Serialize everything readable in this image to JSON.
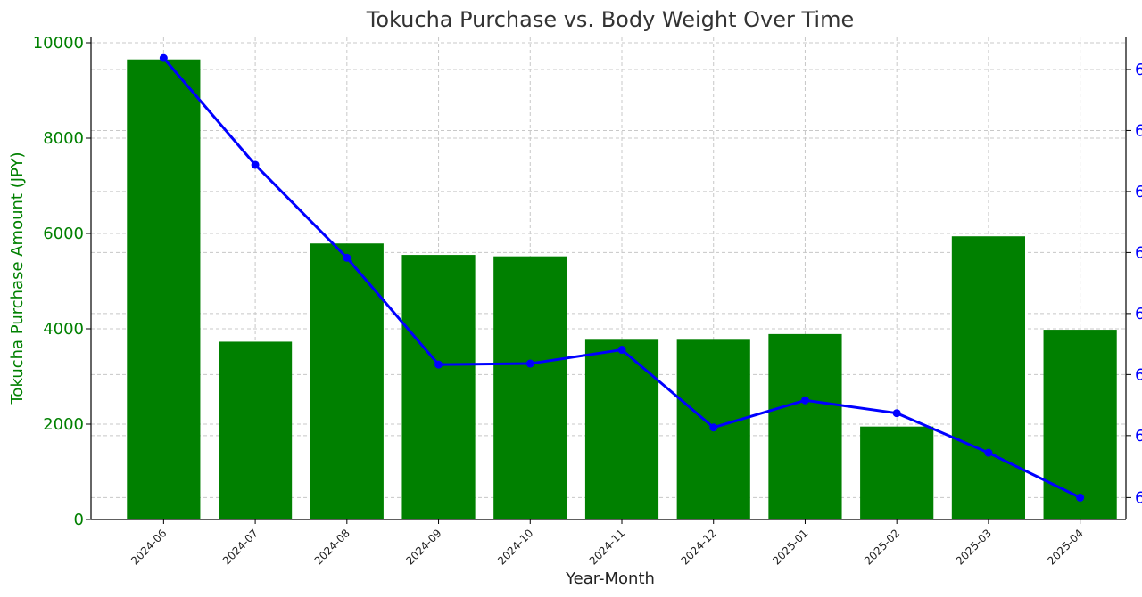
{
  "chart_data": {
    "type": "bar",
    "title": "Tokucha Purchase vs. Body Weight Over Time",
    "xlabel": "Year-Month",
    "ylabel": "Tokucha Purchase Amount (JPY)",
    "categories": [
      "2024-06",
      "2024-07",
      "2024-08",
      "2024-09",
      "2024-10",
      "2024-11",
      "2024-12",
      "2025-01",
      "2025-02",
      "2025-03",
      "2025-04"
    ],
    "ylim": [
      0,
      10000
    ],
    "yticks": [
      0,
      2000,
      4000,
      6000,
      8000,
      10000
    ],
    "grid": true,
    "series": [
      {
        "type": "bar",
        "axis": "left",
        "color": "#008000",
        "values": [
          9650,
          3730,
          5790,
          5550,
          5520,
          3770,
          3770,
          3890,
          1950,
          5940,
          3980
        ]
      },
      {
        "type": "line",
        "axis": "right",
        "color": "#0000ff",
        "values_in_left_scale": [
          9680,
          7440,
          5490,
          3250,
          3270,
          3560,
          1930,
          2500,
          2230,
          1400,
          460
        ]
      }
    ],
    "right_axis": {
      "color": "#0000ff",
      "tick_labels": [
        "6",
        "6",
        "6",
        "6",
        "6",
        "6",
        "6",
        "6"
      ],
      "tick_positions_left_scale": [
        9440,
        8160,
        6880,
        5600,
        4320,
        3040,
        1760,
        460
      ]
    }
  }
}
